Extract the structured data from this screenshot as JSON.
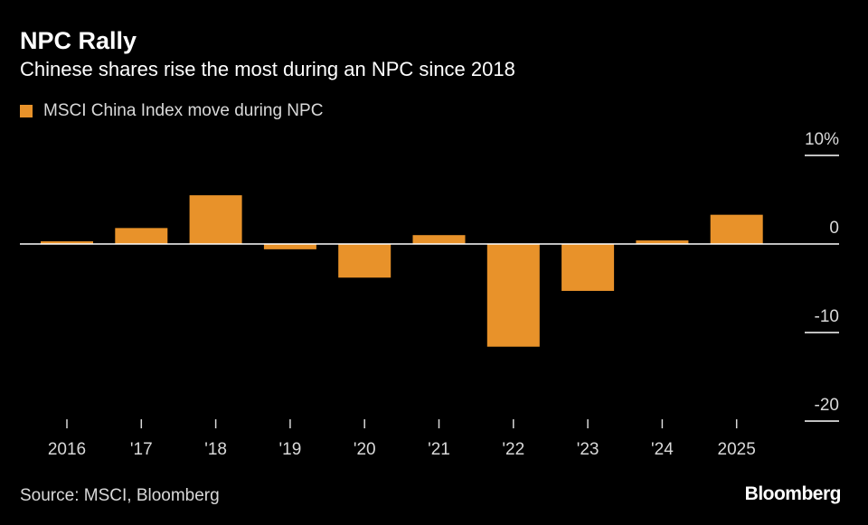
{
  "header": {
    "title": "NPC Rally",
    "subtitle": "Chinese shares rise the most during an NPC since 2018"
  },
  "legend": {
    "label": "MSCI China Index move during NPC"
  },
  "footer": {
    "source": "Source: MSCI, Bloomberg",
    "brand": "Bloomberg"
  },
  "colors": {
    "bar": "#e8922a",
    "background": "#000000",
    "text": "#ffffff",
    "muted_text": "#d9d9d9",
    "axis": "#ffffff"
  },
  "chart_data": {
    "type": "bar",
    "categories": [
      "2016",
      "'17",
      "'18",
      "'19",
      "'20",
      "'21",
      "'22",
      "'23",
      "'24",
      "2025"
    ],
    "series": [
      {
        "name": "MSCI China Index move during NPC",
        "values": [
          0.3,
          1.8,
          5.5,
          -0.6,
          -3.8,
          1.0,
          -11.6,
          -5.3,
          0.4,
          3.3
        ]
      }
    ],
    "ylim": [
      -20,
      10
    ],
    "yticks": [
      10,
      0,
      -10,
      -20
    ],
    "ytick_labels": [
      "10%",
      "0",
      "-10",
      "-20"
    ],
    "y_axis_side": "right",
    "grid": false,
    "legend_position": "top-left"
  }
}
